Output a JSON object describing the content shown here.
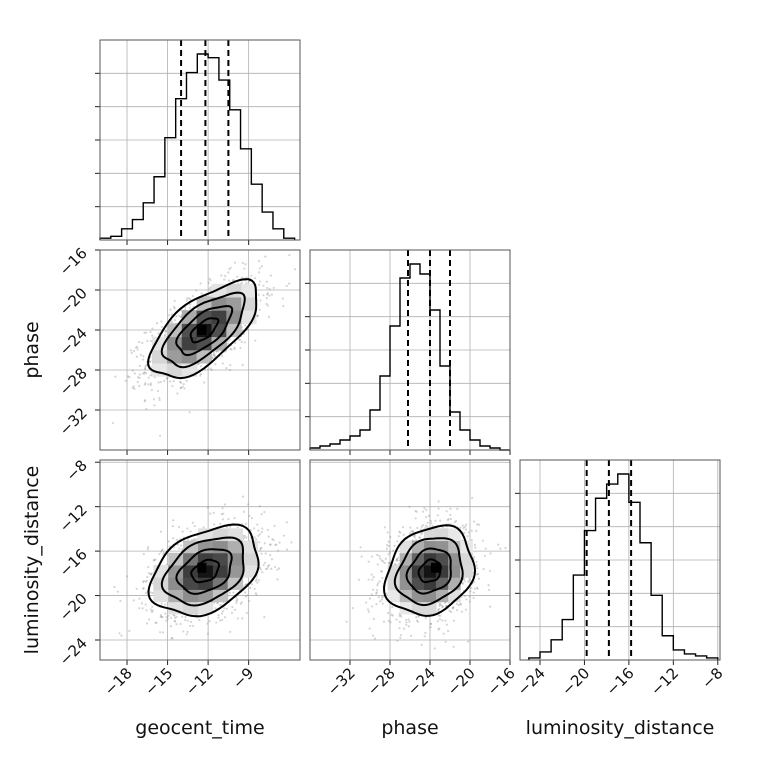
{
  "chart_data": {
    "type": "corner",
    "parameters": [
      {
        "key": "geocent_time",
        "label": "geocent_time",
        "range": [
          -20.0,
          -5.2
        ],
        "ticks": [
          -18,
          -15,
          -12,
          -9
        ],
        "tick_labels": [
          "−18",
          "−15",
          "−12",
          "−9"
        ]
      },
      {
        "key": "phase",
        "label": "phase",
        "range": [
          -36.0,
          -16.0
        ],
        "ticks": [
          -32,
          -28,
          -24,
          -20,
          -16
        ],
        "tick_labels": [
          "−32",
          "−28",
          "−24",
          "−20",
          "−16"
        ]
      },
      {
        "key": "luminosity_distance",
        "label": "luminosity_distance",
        "range": [
          -25.8,
          -7.8
        ],
        "ticks": [
          -24,
          -20,
          -16,
          -12,
          -8
        ],
        "tick_labels": [
          "−24",
          "−20",
          "−16",
          "−12",
          "−8"
        ]
      }
    ],
    "y_axis_ticks": {
      "phase": {
        "ticks": [
          -16,
          -20,
          -24,
          -28,
          -32
        ],
        "tick_labels": [
          "−16",
          "−20",
          "−24",
          "−28",
          "−32"
        ]
      },
      "luminosity_distance": {
        "ticks": [
          -8,
          -12,
          -16,
          -20,
          -24
        ],
        "tick_labels": [
          "−8",
          "−12",
          "−16",
          "−20",
          "−24"
        ]
      }
    },
    "histograms": [
      {
        "parameter": "geocent_time",
        "bin_edges": [
          -20.0,
          -19.2,
          -18.4,
          -17.6,
          -16.8,
          -16.0,
          -15.2,
          -14.4,
          -13.6,
          -12.8,
          -12.0,
          -11.2,
          -10.4,
          -9.6,
          -8.8,
          -8.0,
          -7.2,
          -6.4,
          -5.6
        ],
        "counts": [
          0.01,
          0.02,
          0.06,
          0.11,
          0.2,
          0.34,
          0.55,
          0.76,
          0.9,
          1.0,
          0.98,
          0.86,
          0.7,
          0.49,
          0.3,
          0.15,
          0.06,
          0.01
        ],
        "quantiles": [
          -14.0,
          -12.2,
          -10.5
        ]
      },
      {
        "parameter": "phase",
        "bin_edges": [
          -36.0,
          -35.0,
          -34.0,
          -33.0,
          -32.0,
          -31.0,
          -30.0,
          -29.0,
          -28.0,
          -27.0,
          -26.0,
          -25.0,
          -24.0,
          -23.0,
          -22.0,
          -21.0,
          -20.0,
          -19.0,
          -18.0,
          -17.0,
          -16.0
        ],
        "counts": [
          0.01,
          0.02,
          0.03,
          0.05,
          0.07,
          0.1,
          0.2,
          0.37,
          0.62,
          0.86,
          0.93,
          0.88,
          0.7,
          0.42,
          0.19,
          0.1,
          0.05,
          0.02,
          0.01,
          0.0
        ],
        "quantiles": [
          -26.2,
          -24.0,
          -22.0
        ]
      },
      {
        "parameter": "luminosity_distance",
        "bin_edges": [
          -25.0,
          -24.0,
          -23.0,
          -22.0,
          -21.0,
          -20.0,
          -19.0,
          -18.0,
          -17.0,
          -16.0,
          -15.0,
          -14.0,
          -13.0,
          -12.0,
          -11.0,
          -10.0,
          -9.0,
          -8.0
        ],
        "counts": [
          0.01,
          0.04,
          0.1,
          0.2,
          0.42,
          0.64,
          0.8,
          0.87,
          0.92,
          0.78,
          0.58,
          0.32,
          0.12,
          0.05,
          0.03,
          0.02,
          0.01
        ],
        "quantiles": [
          -19.8,
          -17.8,
          -15.8
        ]
      }
    ],
    "pairs": [
      {
        "x": "geocent_time",
        "y": "phase",
        "mean": [
          -12.3,
          -24.0
        ],
        "sd": [
          2.0,
          2.4
        ],
        "corr": 0.65,
        "contours_sigma": [
          0.5,
          1.0,
          1.5,
          2.0
        ],
        "peak": [
          -12.5,
          -24.0
        ]
      },
      {
        "x": "geocent_time",
        "y": "luminosity_distance",
        "mean": [
          -12.2,
          -17.8
        ],
        "sd": [
          2.0,
          2.0
        ],
        "corr": 0.35,
        "contours_sigma": [
          0.5,
          1.0,
          1.5,
          2.0
        ],
        "peak": [
          -12.5,
          -17.5
        ]
      },
      {
        "x": "phase",
        "y": "luminosity_distance",
        "mean": [
          -24.0,
          -17.8
        ],
        "sd": [
          2.2,
          2.0
        ],
        "corr": 0.2,
        "contours_sigma": [
          0.5,
          1.0,
          1.5,
          2.0
        ],
        "peak": [
          -23.5,
          -17.5
        ]
      }
    ],
    "grid": true
  }
}
